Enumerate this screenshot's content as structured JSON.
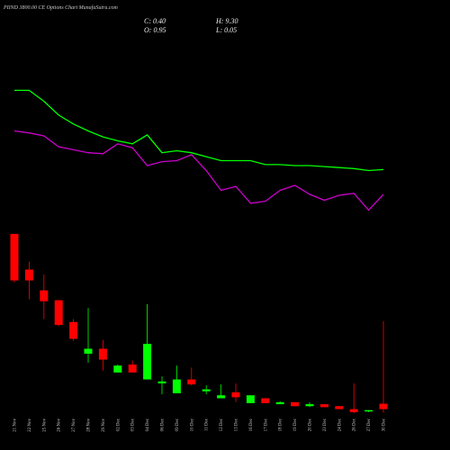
{
  "chart_data": {
    "type": "candlestick",
    "title": "PIIND 3800.00 CE Options Chart MunafaSutra.com",
    "header": [
      "C: 0.40",
      "H: 9.30",
      "O: 0.95",
      "L: 0.05"
    ],
    "categories": [
      "21 Nov",
      "22 Nov",
      "25 Nov",
      "26 Nov",
      "27 Nov",
      "28 Nov",
      "29 Nov",
      "02 Dec",
      "03 Dec",
      "04 Dec",
      "06 Dec",
      "09 Dec",
      "10 Dec",
      "11 Dec",
      "12 Dec",
      "13 Dec",
      "16 Dec",
      "17 Dec",
      "18 Dec",
      "19 Dec",
      "20 Dec",
      "23 Dec",
      "24 Dec",
      "26 Dec",
      "27 Dec",
      "30 Dec"
    ],
    "open": [
      18.1,
      14.5,
      12.4,
      11.4,
      9.2,
      6.0,
      6.5,
      4.1,
      4.9,
      3.4,
      3.0,
      2.0,
      3.4,
      2.2,
      1.5,
      2.1,
      1.0,
      1.5,
      0.9,
      1.1,
      0.7,
      0.9,
      0.7,
      0.4,
      0.2,
      0.95
    ],
    "high": [
      18.1,
      15.3,
      14.0,
      11.4,
      9.5,
      10.6,
      7.4,
      4.9,
      5.3,
      11.0,
      3.7,
      4.8,
      4.6,
      2.8,
      2.9,
      3.0,
      1.8,
      1.5,
      1.2,
      1.1,
      1.1,
      0.9,
      0.7,
      3.0,
      0.3,
      9.3
    ],
    "low": [
      13.2,
      11.5,
      9.5,
      8.8,
      7.3,
      5.1,
      4.3,
      4.1,
      4.1,
      3.4,
      1.9,
      2.0,
      2.8,
      1.9,
      1.5,
      1.1,
      1.0,
      1.0,
      0.9,
      0.7,
      0.6,
      0.6,
      0.4,
      0.0,
      0.1,
      0.05
    ],
    "close": [
      13.4,
      13.4,
      11.3,
      8.9,
      7.5,
      6.5,
      5.4,
      4.8,
      4.1,
      7.0,
      3.2,
      3.4,
      2.9,
      2.4,
      1.8,
      1.6,
      1.8,
      1.0,
      1.1,
      0.7,
      0.9,
      0.6,
      0.4,
      0.1,
      0.3,
      0.4
    ],
    "up_color": "#00ff00",
    "down_color": "#ff0000",
    "lines": [
      {
        "color": "#00ff00",
        "values": [
          32.6,
          32.6,
          31.5,
          30.1,
          29.2,
          28.5,
          27.9,
          27.5,
          27.2,
          28.1,
          26.3,
          26.5,
          26.3,
          25.9,
          25.5,
          25.5,
          25.5,
          25.1,
          25.1,
          25.0,
          25.0,
          24.9,
          24.8,
          24.7,
          24.5,
          24.6
        ]
      },
      {
        "color": "#cc00cc",
        "values": [
          28.5,
          28.3,
          28.0,
          26.9,
          26.6,
          26.3,
          26.2,
          27.2,
          26.8,
          25.0,
          25.4,
          25.5,
          26.1,
          24.5,
          22.5,
          22.9,
          21.2,
          21.4,
          22.5,
          23.0,
          22.1,
          21.5,
          22.0,
          22.2,
          20.5,
          22.1
        ]
      }
    ],
    "ylim": [
      0,
      40
    ]
  }
}
